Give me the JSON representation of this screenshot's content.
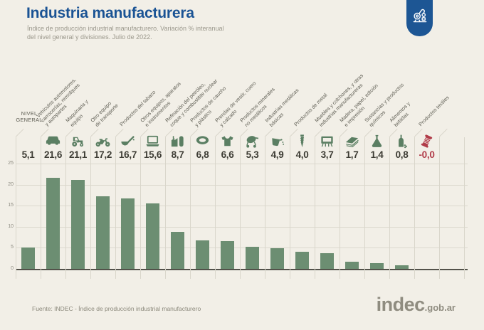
{
  "page": {
    "background": "#F2EFE7"
  },
  "header": {
    "title": "Industria manufacturera",
    "subtitle_line1": "Índice de producción industrial manufacturero. Variación % interanual",
    "subtitle_line2": "del nivel general y divisiones. Julio de 2022.",
    "title_color": "#1A5394",
    "badge_color": "#1D5694",
    "badge_icon": "robot-arm-icon"
  },
  "chart_data": {
    "type": "bar",
    "title": "Industria manufacturera",
    "subtitle": "Índice de producción industrial manufacturero. Variación % interanual del nivel general y divisiones. Julio de 2022.",
    "ylim": [
      0,
      25
    ],
    "yticks": [
      0,
      5,
      10,
      15,
      20,
      25
    ],
    "grid": true,
    "legend_position": "none",
    "bar_color": "#6C8E72",
    "icon_color": "#5B7F63",
    "negative_color": "#B13C49",
    "value_color": "#3D3C34",
    "categories": [
      "Nivel general",
      "Vehículos automotores, carrocerías, remolques y autopartes",
      "Maquinaria y equipo",
      "Otro equipo de transporte",
      "Productos del tabaco",
      "Otros equipos, aparatos e instrumentos",
      "Refinación del petróleo, coque y combustible nuclear",
      "Productos de caucho y plástico",
      "Prendas de vestir, cuero y calzado",
      "Productos minerales no metálicos",
      "Industrias metálicas básicas",
      "Productos de metal",
      "Muebles y colchones, y otras industrias manufactureras",
      "Madera, papel, edición e impresión",
      "Sustancias y productos químicos",
      "Alimentos y bebidas",
      "Productos textiles"
    ],
    "display_labels": [
      "NIVEL|GENERAL",
      "Vehículos automotores,|carrocerías, remolques|y autopartes",
      "Maquinaria y|equipo",
      "Otro equipo|de transporte",
      "Productos del tabaco",
      "Otros equipos, aparatos|e instrumentos",
      "Refinación del petróleo,|coque y combustible nuclear",
      "Productos de caucho|y plástico",
      "Prendas de vestir, cuero|y calzado",
      "Productos minerales|no metálicos",
      "Industrias metálicas|básicas",
      "Productos de metal",
      "Muebles y colchones, y otras|industrias manufactureras",
      "Madera, papel, edición|e impresión",
      "Sustancias y productos|químicos",
      "Alimentos y|bebidas",
      "Productos textiles"
    ],
    "values": [
      5.1,
      21.6,
      21.1,
      17.2,
      16.7,
      15.6,
      8.7,
      6.8,
      6.6,
      5.3,
      4.9,
      4.0,
      3.7,
      1.7,
      1.4,
      0.8,
      -0.0
    ],
    "value_labels": [
      "5,1",
      "21,6",
      "21,1",
      "17,2",
      "16,7",
      "15,6",
      "8,7",
      "6,8",
      "6,6",
      "5,3",
      "4,9",
      "4,0",
      "3,7",
      "1,7",
      "1,4",
      "0,8",
      "-0,0"
    ],
    "icons": [
      null,
      "car-icon",
      "tractor-icon",
      "motorcycle-icon",
      "tobacco-pipe-icon",
      "laptop-icon",
      "oil-refinery-icon",
      "tire-icon",
      "sweater-icon",
      "cement-mixer-icon",
      "metal-crucible-icon",
      "screw-icon",
      "furniture-icon",
      "paper-wood-icon",
      "chemical-flask-icon",
      "bottle-icon",
      "thread-spool-icon"
    ]
  },
  "footer": {
    "source": "Fuente: INDEC - Índice de producción industrial manufacturero",
    "logo_text": "indec",
    "logo_suffix": ".gob.ar"
  }
}
